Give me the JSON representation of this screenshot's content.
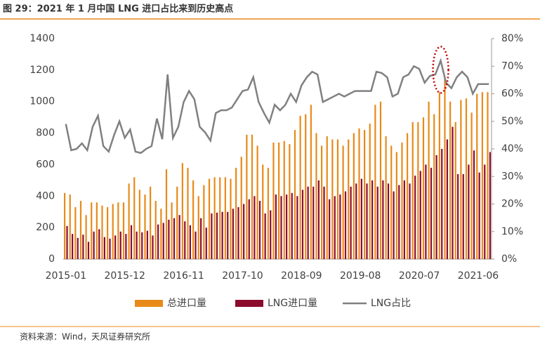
{
  "chart_data": {
    "type": "bar",
    "title": "图 29：2021 年 1 月中国 LNG 进口占比来到历史高点",
    "source": "资料来源：Wind，天风证券研究所",
    "categories": [
      "2015-01",
      null,
      null,
      null,
      null,
      null,
      null,
      null,
      null,
      null,
      null,
      "2015-12",
      null,
      null,
      null,
      null,
      null,
      null,
      null,
      null,
      null,
      null,
      "2016-11",
      null,
      null,
      null,
      null,
      null,
      null,
      null,
      null,
      null,
      null,
      "2017-10",
      null,
      null,
      null,
      null,
      null,
      null,
      null,
      null,
      null,
      null,
      "2018-09",
      null,
      null,
      null,
      null,
      null,
      null,
      null,
      null,
      null,
      null,
      "2019-08",
      null,
      null,
      null,
      null,
      null,
      null,
      null,
      null,
      null,
      null,
      "2020-07",
      null,
      null,
      null,
      null,
      null,
      null,
      null,
      null,
      null,
      null,
      "2021-06",
      null,
      null
    ],
    "series": [
      {
        "name": "总进口量",
        "color": "#e88a1a",
        "values": [
          420,
          410,
          330,
          370,
          280,
          360,
          360,
          340,
          330,
          350,
          360,
          360,
          480,
          520,
          440,
          410,
          460,
          370,
          320,
          570,
          360,
          460,
          610,
          580,
          500,
          400,
          470,
          510,
          520,
          520,
          520,
          510,
          580,
          650,
          790,
          790,
          720,
          600,
          580,
          740,
          740,
          750,
          730,
          820,
          910,
          920,
          980,
          800,
          720,
          780,
          760,
          760,
          720,
          760,
          800,
          830,
          820,
          860,
          980,
          1000,
          780,
          720,
          680,
          740,
          800,
          870,
          870,
          900,
          1000,
          920,
          1060,
          1160,
          1000,
          870,
          1010,
          1020,
          930,
          1050,
          1060,
          1060
        ]
      },
      {
        "name": "LNG进口量",
        "color": "#8c0a2c",
        "values": [
          210,
          160,
          135,
          155,
          110,
          175,
          190,
          140,
          130,
          150,
          175,
          160,
          215,
          175,
          170,
          180,
          150,
          220,
          230,
          250,
          260,
          280,
          240,
          215,
          175,
          260,
          200,
          290,
          295,
          300,
          300,
          320,
          330,
          350,
          380,
          400,
          370,
          290,
          310,
          410,
          400,
          410,
          420,
          400,
          440,
          460,
          460,
          500,
          460,
          380,
          400,
          410,
          430,
          460,
          480,
          510,
          480,
          500,
          460,
          500,
          480,
          430,
          470,
          500,
          480,
          530,
          560,
          600,
          580,
          660,
          700,
          760,
          840,
          540,
          540,
          600,
          690,
          550,
          600,
          680
        ]
      },
      {
        "name": "LNG占比",
        "color": "#808080",
        "type": "line",
        "axis": "y2",
        "values": [
          49,
          39.5,
          40,
          42,
          39.5,
          48,
          52,
          41,
          39,
          45,
          50,
          44,
          47,
          39,
          38.5,
          40,
          41,
          51,
          43.5,
          67,
          44,
          48,
          57,
          61,
          58,
          48,
          46,
          43,
          53,
          54,
          54,
          55,
          58,
          61,
          61.5,
          66,
          57,
          53,
          49.5,
          56,
          54,
          56,
          60,
          57,
          63,
          66,
          68,
          67,
          57,
          58,
          59,
          60,
          59,
          60,
          61,
          61,
          61,
          61,
          68,
          67.5,
          66,
          59,
          60,
          66,
          67,
          70,
          69,
          64,
          66.5,
          67,
          72,
          64,
          62,
          66,
          68,
          66,
          60,
          63.5,
          63.5,
          63.5
        ]
      }
    ],
    "ylim": [
      0,
      1400
    ],
    "yticks": [
      0,
      200,
      400,
      600,
      800,
      1000,
      1200,
      1400
    ],
    "y2lim": [
      0,
      80
    ],
    "y2ticks": [
      {
        "value": 0,
        "label": "0%"
      },
      {
        "value": 10,
        "label": "10%"
      },
      {
        "value": 20,
        "label": "20%"
      },
      {
        "value": 30,
        "label": "30%"
      },
      {
        "value": 40,
        "label": "40%"
      },
      {
        "value": 50,
        "label": "50%"
      },
      {
        "value": 60,
        "label": "60%"
      },
      {
        "value": 70,
        "label": "70%"
      },
      {
        "value": 80,
        "label": "80%"
      }
    ],
    "grid": false,
    "legend": "bottom"
  }
}
